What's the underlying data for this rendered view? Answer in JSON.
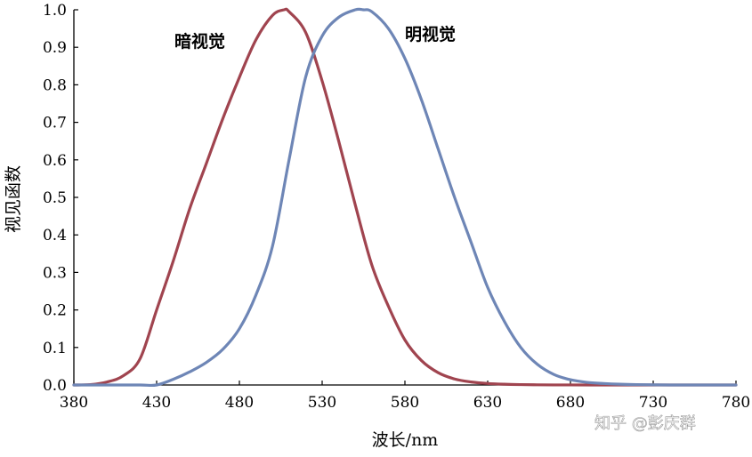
{
  "chart_data": {
    "type": "line",
    "title": "",
    "xlabel": "波长/nm",
    "ylabel": "视见函数",
    "xlim": [
      380,
      780
    ],
    "ylim": [
      0,
      1.0
    ],
    "x_ticks": [
      380,
      430,
      480,
      530,
      580,
      630,
      680,
      730,
      780
    ],
    "y_ticks": [
      0.0,
      0.1,
      0.2,
      0.3,
      0.4,
      0.5,
      0.6,
      0.7,
      0.8,
      0.9,
      1.0
    ],
    "x_tick_labels": [
      "380",
      "430",
      "480",
      "530",
      "580",
      "630",
      "680",
      "730",
      "780"
    ],
    "y_tick_labels": [
      "0.0",
      "0.1",
      "0.2",
      "0.3",
      "0.4",
      "0.5",
      "0.6",
      "0.7",
      "0.8",
      "0.9",
      "1.0"
    ],
    "grid": false,
    "legend": "none",
    "series": [
      {
        "name": "暗视觉",
        "color": "#a0444f",
        "x": [
          380,
          390,
          400,
          410,
          420,
          430,
          440,
          450,
          460,
          470,
          480,
          490,
          500,
          507,
          510,
          520,
          530,
          540,
          550,
          560,
          570,
          580,
          590,
          600,
          610,
          620,
          630,
          640,
          650,
          660,
          670,
          680,
          700,
          720,
          740,
          760,
          780
        ],
        "y": [
          0.0,
          0.001,
          0.008,
          0.025,
          0.07,
          0.2,
          0.33,
          0.47,
          0.59,
          0.71,
          0.82,
          0.92,
          0.985,
          1.0,
          0.995,
          0.94,
          0.81,
          0.65,
          0.48,
          0.32,
          0.21,
          0.12,
          0.065,
          0.033,
          0.016,
          0.008,
          0.004,
          0.002,
          0.001,
          0.0005,
          0.0002,
          0.0001,
          0.0,
          0.0,
          0.0,
          0.0,
          0.0
        ]
      },
      {
        "name": "明视觉",
        "color": "#6e86b6",
        "x": [
          380,
          400,
          420,
          430,
          440,
          450,
          460,
          470,
          480,
          490,
          500,
          510,
          520,
          530,
          540,
          550,
          555,
          560,
          570,
          580,
          590,
          600,
          610,
          620,
          630,
          640,
          650,
          660,
          670,
          680,
          690,
          700,
          710,
          720,
          740,
          760,
          780
        ],
        "y": [
          0.0,
          0.0,
          0.0,
          0.0,
          0.015,
          0.035,
          0.06,
          0.095,
          0.15,
          0.24,
          0.37,
          0.6,
          0.82,
          0.93,
          0.98,
          1.0,
          1.0,
          0.995,
          0.95,
          0.87,
          0.76,
          0.63,
          0.5,
          0.38,
          0.26,
          0.17,
          0.1,
          0.055,
          0.028,
          0.014,
          0.007,
          0.004,
          0.002,
          0.001,
          0.0,
          0.0,
          0.0
        ]
      }
    ]
  },
  "watermark": "知乎 @彭庆群"
}
